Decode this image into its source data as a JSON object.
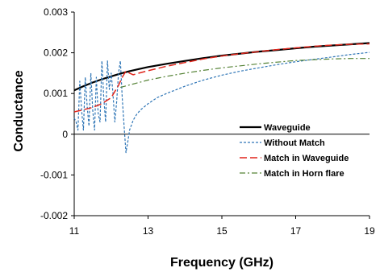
{
  "chart_data": {
    "type": "line",
    "xlabel": "Frequency (GHz)",
    "ylabel": "Conductance",
    "xlim": [
      11,
      19
    ],
    "ylim": [
      -0.002,
      0.003
    ],
    "grid": false,
    "legend_position": "bottom-right",
    "x_ticks": [
      "11",
      "13",
      "15",
      "17",
      "19"
    ],
    "y_ticks": [
      "0.003",
      "0.002",
      "0.001",
      "0",
      "-0.001",
      "-0.002"
    ],
    "series": [
      {
        "name": "Waveguide",
        "style": "solid",
        "color": "#000000",
        "x": [
          11.0,
          11.25,
          11.5,
          11.75,
          12.0,
          12.25,
          12.5,
          12.75,
          13.0,
          13.5,
          14.0,
          14.5,
          15.0,
          15.5,
          16.0,
          16.5,
          17.0,
          17.5,
          18.0,
          18.5,
          19.0
        ],
        "y": [
          0.00108,
          0.00118,
          0.00127,
          0.00135,
          0.00142,
          0.00149,
          0.00155,
          0.0016,
          0.00165,
          0.00173,
          0.0018,
          0.00187,
          0.00193,
          0.00198,
          0.00203,
          0.00207,
          0.00211,
          0.00215,
          0.00218,
          0.00221,
          0.00224
        ]
      },
      {
        "name": "Without Match",
        "style": "dashed",
        "color": "#2e75b6",
        "x": [
          11.0,
          11.05,
          11.1,
          11.15,
          11.2,
          11.25,
          11.3,
          11.35,
          11.4,
          11.45,
          11.5,
          11.55,
          11.6,
          11.65,
          11.7,
          11.75,
          11.8,
          11.85,
          11.9,
          11.95,
          12.0,
          12.05,
          12.1,
          12.15,
          12.2,
          12.25,
          12.3,
          12.35,
          12.4,
          12.45,
          12.5,
          12.6,
          12.7,
          12.8,
          13.0,
          13.25,
          13.5,
          14.0,
          14.5,
          15.0,
          15.5,
          16.0,
          16.5,
          17.0,
          17.5,
          18.0,
          18.5,
          19.0
        ],
        "y": [
          0.0004,
          0.0003,
          0.0001,
          0.0013,
          0.0006,
          0.0001,
          0.0014,
          0.0007,
          0.0002,
          0.0015,
          0.0006,
          0.0001,
          0.0014,
          0.0005,
          0.0003,
          0.0018,
          0.0009,
          0.0003,
          0.0018,
          0.0011,
          0.0015,
          0.001,
          0.0003,
          0.0008,
          0.0015,
          0.0018,
          0.0009,
          0.0002,
          -0.00045,
          -0.0002,
          0.0001,
          0.00035,
          0.0005,
          0.0006,
          0.00075,
          0.0009,
          0.001,
          0.00118,
          0.00133,
          0.00145,
          0.00155,
          0.00163,
          0.00171,
          0.00178,
          0.00184,
          0.0019,
          0.00196,
          0.00201
        ]
      },
      {
        "name": "Match in Waveguide",
        "style": "long-dash",
        "color": "#e0251b",
        "x": [
          11.0,
          11.25,
          11.5,
          11.75,
          12.0,
          12.1,
          12.2,
          12.3,
          12.4,
          12.5,
          12.6,
          12.75,
          13.0,
          13.5,
          14.0,
          14.5,
          15.0,
          15.5,
          16.0,
          16.5,
          17.0,
          17.5,
          18.0,
          18.5,
          19.0
        ],
        "y": [
          0.00055,
          0.0006,
          0.00066,
          0.00075,
          0.0009,
          0.00105,
          0.0012,
          0.0014,
          0.00155,
          0.0015,
          0.00146,
          0.0015,
          0.00156,
          0.00167,
          0.00176,
          0.00185,
          0.00192,
          0.00198,
          0.00203,
          0.00208,
          0.00212,
          0.00216,
          0.00219,
          0.00221,
          0.00222
        ]
      },
      {
        "name": "Match in Horn flare",
        "style": "dash-dot",
        "color": "#548235",
        "x": [
          12.25,
          12.5,
          12.75,
          13.0,
          13.5,
          14.0,
          14.5,
          15.0,
          15.5,
          16.0,
          16.5,
          17.0,
          17.5,
          18.0,
          18.5,
          19.0
        ],
        "y": [
          0.00115,
          0.00121,
          0.00127,
          0.00133,
          0.00142,
          0.0015,
          0.00157,
          0.00163,
          0.00168,
          0.00173,
          0.00177,
          0.00181,
          0.00183,
          0.00185,
          0.00186,
          0.00186
        ]
      }
    ]
  }
}
